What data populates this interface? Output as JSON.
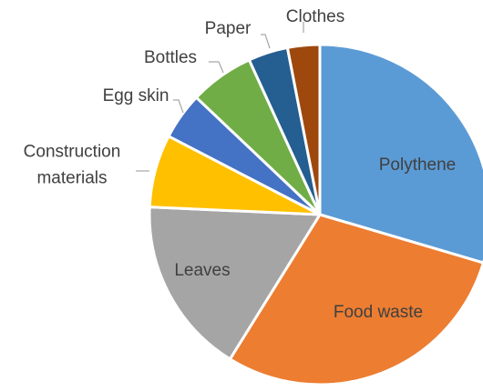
{
  "chart_data": {
    "type": "pie",
    "title": "",
    "legend": "none",
    "categories": [
      "Polythene",
      "Food waste",
      "Leaves",
      "Construction materials",
      "Egg skin",
      "Bottles",
      "Paper",
      "Clothes"
    ],
    "label_lines": [
      [
        "Polythene"
      ],
      [
        "Food waste"
      ],
      [
        "Leaves"
      ],
      [
        "Construction",
        "materials"
      ],
      [
        "Egg skin"
      ],
      [
        "Bottles"
      ],
      [
        "Paper"
      ],
      [
        "Clothes"
      ]
    ],
    "values": [
      29.1,
      28.8,
      16.6,
      6.8,
      4.4,
      6.0,
      3.7,
      3.0
    ],
    "colors": [
      "#5B9BD5",
      "#ED7D31",
      "#A5A5A5",
      "#FFC000",
      "#4472C4",
      "#70AD47",
      "#255E91",
      "#9E480E"
    ],
    "label_placement": [
      "inside",
      "inside",
      "inside",
      "outside",
      "outside",
      "outside",
      "outside",
      "outside"
    ]
  }
}
